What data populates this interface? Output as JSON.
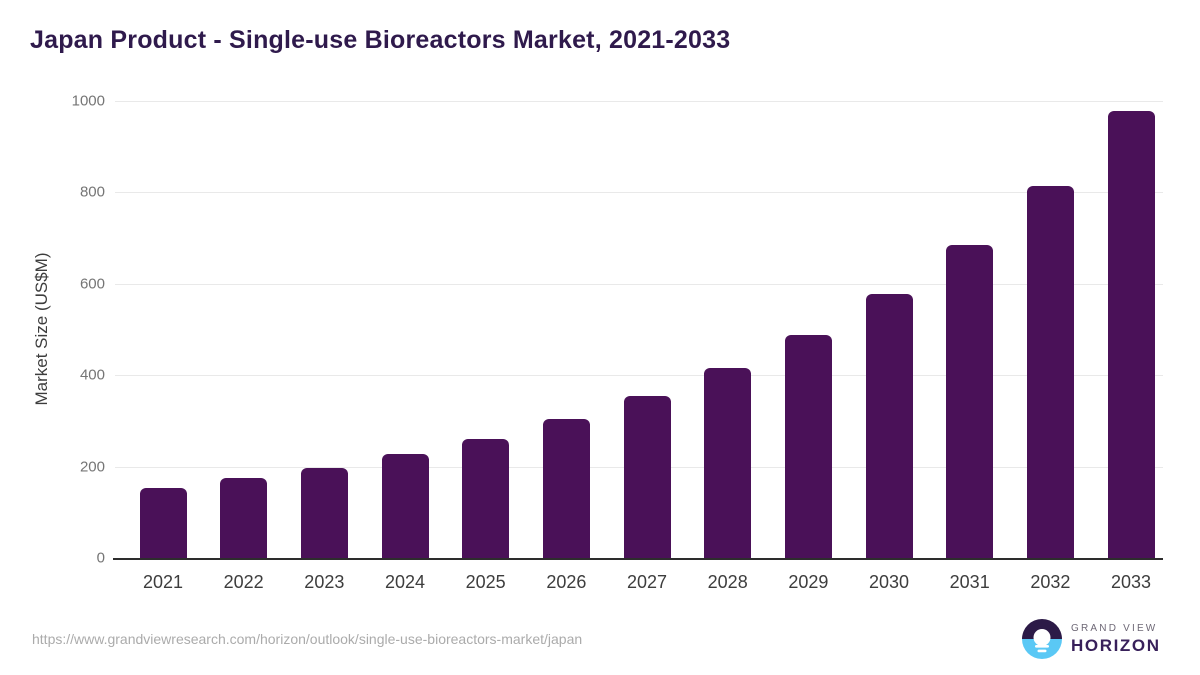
{
  "title": "Japan Product - Single-use Bioreactors Market, 2021-2033",
  "footer": {
    "source_url": "https://www.grandviewresearch.com/horizon/outlook/single-use-bioreactors-market/japan",
    "logo": {
      "line1": "GRAND VIEW",
      "line2": "HORIZON"
    }
  },
  "colors": {
    "bar": "#4a1158",
    "title": "#2f1a4c",
    "grid": "#e9e9e9",
    "axis_line": "#2d2d2d",
    "tick_label": "#757575",
    "year_label": "#3d3d3d",
    "url_text": "#ababab",
    "logo_dark": "#2c1a47",
    "logo_blue": "#5ac8f5",
    "logo_grand_view": "#6e6876",
    "logo_horizon": "#38205a"
  },
  "chart_data": {
    "type": "bar",
    "title": "Japan Product - Single-use Bioreactors Market, 2021-2033",
    "categories": [
      "2021",
      "2022",
      "2023",
      "2024",
      "2025",
      "2026",
      "2027",
      "2028",
      "2029",
      "2030",
      "2031",
      "2032",
      "2033"
    ],
    "values": [
      153,
      175,
      198,
      227,
      261,
      305,
      354,
      415,
      489,
      578,
      685,
      815,
      978
    ],
    "xlabel": "",
    "ylabel": "Market Size (US$M)",
    "ylim": [
      0,
      1000
    ],
    "yticks": [
      0,
      200,
      400,
      600,
      800,
      1000
    ],
    "grid": "horizontal",
    "legend": "none",
    "bar_color": "#4a1158"
  }
}
